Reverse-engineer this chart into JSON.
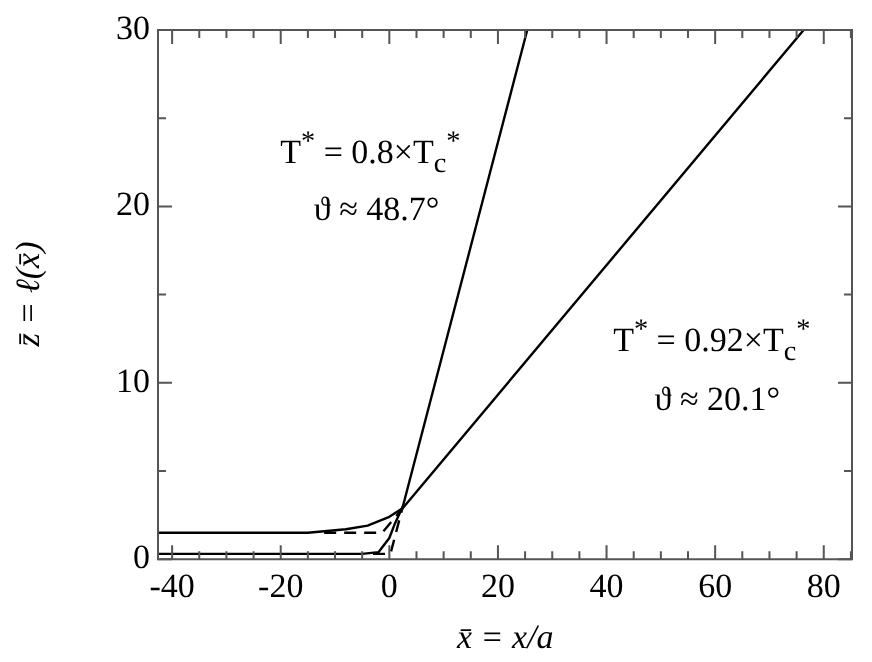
{
  "chart_data": {
    "type": "line",
    "xlabel": "x̄ = x/a",
    "ylabel": "z̄ = ℓ(x̄)",
    "marker": "none",
    "grid": false,
    "legend": false,
    "xlim": [
      -42.6,
      85.2
    ],
    "ylim": [
      0,
      30
    ],
    "xticks": [
      {
        "value": -40,
        "label": "-40"
      },
      {
        "value": -35,
        "label": null
      },
      {
        "value": -30,
        "label": null
      },
      {
        "value": -25,
        "label": null
      },
      {
        "value": -20,
        "label": "-20"
      },
      {
        "value": -15,
        "label": null
      },
      {
        "value": -10,
        "label": null
      },
      {
        "value": -5,
        "label": null
      },
      0,
      {
        "value": 5,
        "label": null
      },
      {
        "value": 10,
        "label": null
      },
      {
        "value": 15,
        "label": null
      },
      20,
      {
        "value": 25,
        "label": null
      },
      {
        "value": 30,
        "label": null
      },
      {
        "value": 35,
        "label": null
      },
      40,
      {
        "value": 45,
        "label": null
      },
      {
        "value": 50,
        "label": null
      },
      {
        "value": 55,
        "label": null
      },
      60,
      {
        "value": 65,
        "label": null
      },
      {
        "value": 70,
        "label": null
      },
      {
        "value": 75,
        "label": null
      },
      80,
      {
        "value": 85,
        "label": null
      }
    ],
    "yticks": [
      0,
      {
        "value": 5,
        "label": null
      },
      10,
      {
        "value": 15,
        "label": null
      },
      20,
      {
        "value": 25,
        "label": null
      },
      30
    ],
    "series": [
      {
        "color": "#000000",
        "line_style": "solid",
        "x": [
          -42.6,
          -5,
          -2,
          0,
          1,
          2.5,
          25.4
        ],
        "values": [
          0.3,
          0.3,
          0.4,
          1.2,
          2,
          3,
          30
        ]
      },
      {
        "color": "#000000",
        "line_style": "solid",
        "x": [
          -42.6,
          -15,
          -8,
          -4,
          0,
          2.5,
          76.3
        ],
        "values": [
          1.5,
          1.5,
          1.7,
          1.9,
          2.4,
          2.9,
          30
        ]
      },
      {
        "color": "#000000",
        "line_style": "dashed",
        "x": [
          -12,
          -1.3,
          2.5
        ],
        "values": [
          1.5,
          1.5,
          2.9
        ]
      },
      {
        "color": "#000000",
        "line_style": "dashed",
        "x": [
          -3,
          0.2,
          2.5
        ],
        "values": [
          0.3,
          0.3,
          3
        ]
      }
    ],
    "annotations": [
      "T$^{*}$ = 0.8×T$_{c}$$^{*}$",
      "ϑ ≈ 48.7°",
      "T$^{*}$ = 0.92×T$_{c}$$^{*}$",
      "ϑ ≈ 20.1°"
    ]
  }
}
